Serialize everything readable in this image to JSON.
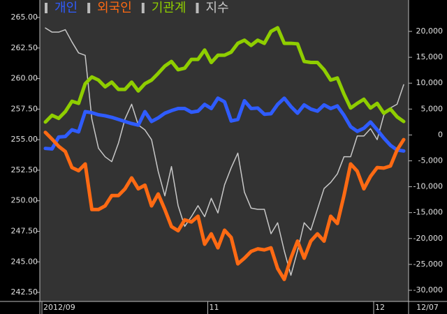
{
  "chart_data": {
    "type": "line",
    "categories": [
      "2012/09",
      null,
      null,
      null,
      null,
      null,
      null,
      null,
      null,
      null,
      null,
      null,
      null,
      null,
      null,
      null,
      null,
      null,
      null,
      null,
      null,
      null,
      null,
      null,
      null,
      "11",
      null,
      null,
      null,
      null,
      null,
      null,
      null,
      null,
      null,
      null,
      null,
      null,
      null,
      null,
      null,
      null,
      null,
      null,
      null,
      null,
      null,
      null,
      null,
      null,
      "12",
      null,
      null,
      null,
      "12/07"
    ],
    "ylim": [
      241.76,
      266.43
    ],
    "yticks": [
      {
        "value": 242.5,
        "label": "242.50"
      },
      {
        "value": 245,
        "label": "245.00"
      },
      {
        "value": 247.5,
        "label": "247.50"
      },
      {
        "value": 250,
        "label": "250.00"
      },
      {
        "value": 252.5,
        "label": "252.50"
      },
      {
        "value": 255,
        "label": "255.00"
      },
      {
        "value": 257.5,
        "label": "257.50"
      },
      {
        "value": 260,
        "label": "260.00"
      },
      {
        "value": 262.5,
        "label": "262.50"
      },
      {
        "value": 265,
        "label": "265.00"
      }
    ],
    "y2lim": [
      -32156,
      26065
    ],
    "y2ticks": [
      {
        "value": -30000,
        "label": "-30,000"
      },
      {
        "value": -25000,
        "label": "-25,000"
      },
      {
        "value": -20000,
        "label": "-20,000"
      },
      {
        "value": -15000,
        "label": "-15,000"
      },
      {
        "value": -10000,
        "label": "-10,000"
      },
      {
        "value": -5000,
        "label": "-5,000"
      },
      0,
      {
        "value": 5000,
        "label": "5,000"
      },
      {
        "value": 10000,
        "label": "10,000"
      },
      {
        "value": 15000,
        "label": "15,000"
      },
      {
        "value": 20000,
        "label": "20,000"
      }
    ],
    "series": [
      {
        "name": "개인",
        "color": "#2f5cff",
        "axis": "y2",
        "values": [
          -2600,
          -2700,
          -400,
          -300,
          1000,
          600,
          4500,
          4300,
          3900,
          3700,
          3400,
          3000,
          2600,
          2200,
          1900,
          4500,
          2600,
          3300,
          4200,
          4700,
          5100,
          5100,
          4400,
          4600,
          5900,
          5100,
          7100,
          6400,
          2700,
          3000,
          6600,
          5100,
          5200,
          4000,
          4100,
          5900,
          7100,
          5500,
          4200,
          5800,
          5000,
          4600,
          5800,
          5100,
          5600,
          3800,
          1600,
          700,
          1300,
          2500,
          1000,
          -600,
          -2000,
          -2900,
          -3100
        ]
      },
      {
        "name": "외국인",
        "color": "#ff6a13",
        "axis": "y2",
        "values": [
          500,
          -800,
          -2200,
          -3200,
          -6300,
          -6900,
          -5600,
          -14400,
          -14400,
          -13700,
          -11700,
          -11700,
          -10400,
          -8300,
          -10400,
          -9700,
          -13700,
          -11400,
          -14400,
          -17700,
          -18500,
          -16400,
          -16800,
          -15700,
          -21100,
          -19100,
          -21800,
          -18400,
          -19800,
          -24900,
          -23800,
          -22500,
          -22000,
          -22200,
          -21800,
          -25800,
          -27900,
          -23800,
          -20500,
          -23800,
          -20500,
          -19100,
          -20500,
          -15700,
          -17100,
          -11700,
          -5600,
          -7000,
          -10400,
          -8000,
          -6300,
          -6400,
          -6000,
          -2900,
          -900
        ]
      },
      {
        "name": "기관계",
        "color": "#8fce00",
        "axis": "y2",
        "values": [
          2500,
          3800,
          3200,
          4500,
          6500,
          6100,
          9900,
          11200,
          10600,
          9300,
          10200,
          8800,
          8800,
          10200,
          8500,
          9900,
          10600,
          11900,
          13300,
          14200,
          12600,
          12900,
          14600,
          14600,
          16400,
          14000,
          15400,
          15400,
          16000,
          17700,
          18300,
          17300,
          18300,
          17700,
          20000,
          20700,
          17700,
          17700,
          17600,
          14200,
          14000,
          14000,
          12600,
          10600,
          11000,
          7900,
          5200,
          6100,
          6900,
          5200,
          6100,
          4200,
          5000,
          3500,
          2600
        ]
      },
      {
        "name": "지수",
        "color": "#c8c8c8",
        "values": [
          264.14,
          263.8,
          263.8,
          264.0,
          263.0,
          262.1,
          261.9,
          256.7,
          254.3,
          253.6,
          253.2,
          254.7,
          256.7,
          257.9,
          256.2,
          255.8,
          255.0,
          252.4,
          250.4,
          252.8,
          249.6,
          247.9,
          248.7,
          249.6,
          248.7,
          250.2,
          249.0,
          251.3,
          252.7,
          253.9,
          250.7,
          249.4,
          249.3,
          249.3,
          247.3,
          248.2,
          245.9,
          243.9,
          245.9,
          248.2,
          247.6,
          249.3,
          251.0,
          251.5,
          252.2,
          253.6,
          253.6,
          255.3,
          255.3,
          255.9,
          255.0,
          257.0,
          257.6,
          257.9,
          259.5
        ]
      }
    ]
  }
}
